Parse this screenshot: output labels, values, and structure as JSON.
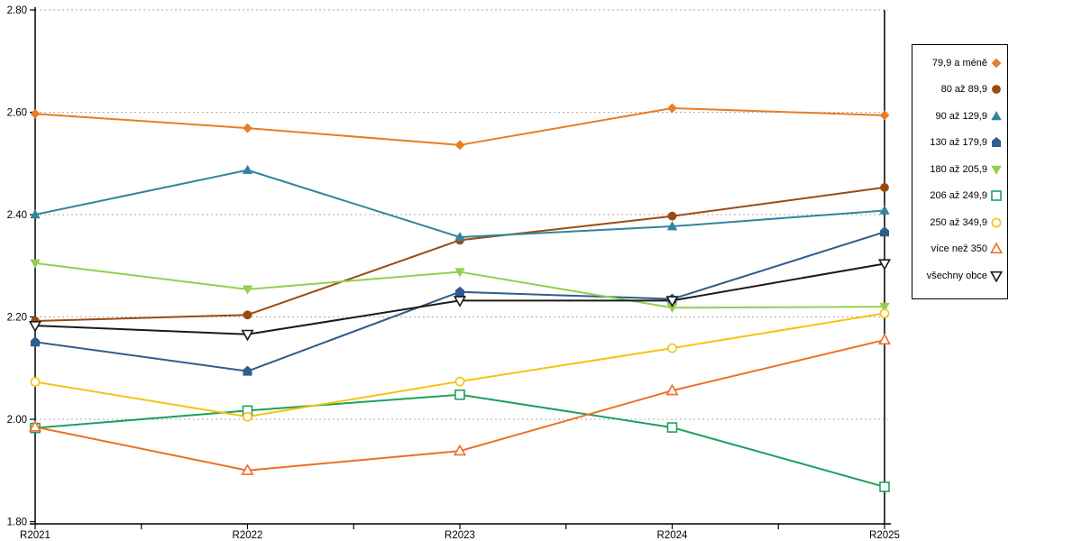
{
  "chart_data": {
    "type": "line",
    "title": "",
    "xlabel": "",
    "ylabel": "",
    "x_categories": [
      "R2021",
      "R2022",
      "R2023",
      "R2024",
      "R2025"
    ],
    "y_ticks": [
      "2.80",
      "2.60",
      "2.40",
      "2.20",
      "2.00",
      "1.80"
    ],
    "y_tick_values": [
      2.8,
      2.6,
      2.4,
      2.2,
      2.0,
      1.8
    ],
    "ylim": [
      1.8,
      2.8
    ],
    "grid": "horizontal-dotted",
    "legend_position": "right",
    "series": [
      {
        "name": "79,9 a méně",
        "marker": "diamond-filled",
        "color": "#E87D23",
        "values": [
          2.597,
          2.569,
          2.536,
          2.608,
          2.594
        ]
      },
      {
        "name": "80 až 89,9",
        "marker": "circle-filled",
        "color": "#9A4B13",
        "values": [
          2.192,
          2.204,
          2.35,
          2.397,
          2.453
        ]
      },
      {
        "name": "90 až 129,9",
        "marker": "triangle-up-filled",
        "color": "#31859C",
        "values": [
          2.4,
          2.487,
          2.356,
          2.377,
          2.408
        ]
      },
      {
        "name": "130 až 179,9",
        "marker": "pentagon-filled",
        "color": "#2F5D8C",
        "values": [
          2.151,
          2.094,
          2.249,
          2.235,
          2.366
        ]
      },
      {
        "name": "180 až 205,9",
        "marker": "triangle-down-filled",
        "color": "#92D050",
        "values": [
          2.305,
          2.254,
          2.288,
          2.218,
          2.22
        ]
      },
      {
        "name": "206 až 249,9",
        "marker": "square-open",
        "color": "#1FA05F",
        "values": [
          1.983,
          2.017,
          2.048,
          1.984,
          1.868
        ]
      },
      {
        "name": "250 až 349,9",
        "marker": "circle-open",
        "color": "#F5C211",
        "values": [
          2.073,
          2.005,
          2.074,
          2.139,
          2.207
        ]
      },
      {
        "name": "více než 350",
        "marker": "triangle-up-open",
        "color": "#EE6F25",
        "values": [
          1.985,
          1.9,
          1.938,
          2.056,
          2.155
        ]
      },
      {
        "name": "všechny obce",
        "marker": "triangle-down-open",
        "color": "#1A1A1A",
        "values": [
          2.183,
          2.166,
          2.232,
          2.232,
          2.304
        ]
      }
    ],
    "colors": {
      "axis": "#000000",
      "grid": "#ABABAB",
      "background": "#FFFFFF",
      "legend_border": "#000000"
    }
  }
}
